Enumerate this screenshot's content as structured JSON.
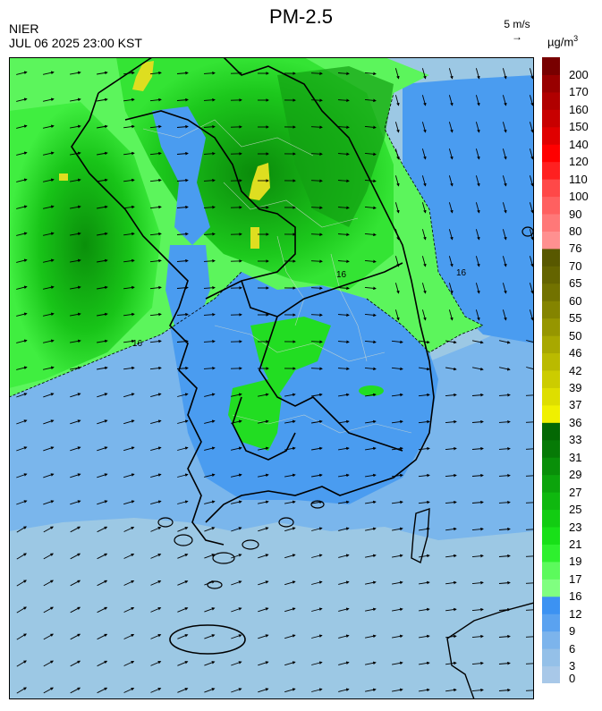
{
  "header": {
    "title": "PM-2.5",
    "agency": "NIER",
    "datetime": "JUL 06 2025 23:00 KST",
    "wind_scale_label": "5 m/s",
    "unit_base": "µg/m",
    "unit_exp": "3"
  },
  "legend": {
    "bands": [
      {
        "label": "0",
        "color": "#a8c8e8"
      },
      {
        "label": "3",
        "color": "#94c0e8"
      },
      {
        "label": "6",
        "color": "#7cb4ec"
      },
      {
        "label": "9",
        "color": "#5aa2f0"
      },
      {
        "label": "12",
        "color": "#3c92f2"
      },
      {
        "label": "16",
        "color": "#80ff80"
      },
      {
        "label": "17",
        "color": "#5cfa5c"
      },
      {
        "label": "19",
        "color": "#2ef02e"
      },
      {
        "label": "21",
        "color": "#18e018"
      },
      {
        "label": "23",
        "color": "#12cc12"
      },
      {
        "label": "25",
        "color": "#0fb80f"
      },
      {
        "label": "27",
        "color": "#0ca40c"
      },
      {
        "label": "29",
        "color": "#098f09"
      },
      {
        "label": "31",
        "color": "#067a06"
      },
      {
        "label": "33",
        "color": "#046804"
      },
      {
        "label": "36",
        "color": "#f0f000"
      },
      {
        "label": "37",
        "color": "#dede00"
      },
      {
        "label": "39",
        "color": "#cccc00"
      },
      {
        "label": "42",
        "color": "#baba00"
      },
      {
        "label": "46",
        "color": "#a8a800"
      },
      {
        "label": "50",
        "color": "#969600"
      },
      {
        "label": "55",
        "color": "#848400"
      },
      {
        "label": "60",
        "color": "#727200"
      },
      {
        "label": "65",
        "color": "#646400"
      },
      {
        "label": "70",
        "color": "#585800"
      },
      {
        "label": "76",
        "color": "#ff9090"
      },
      {
        "label": "80",
        "color": "#ff7878"
      },
      {
        "label": "90",
        "color": "#ff6060"
      },
      {
        "label": "100",
        "color": "#ff4848"
      },
      {
        "label": "110",
        "color": "#ff2020"
      },
      {
        "label": "120",
        "color": "#ff0000"
      },
      {
        "label": "140",
        "color": "#e00000"
      },
      {
        "label": "150",
        "color": "#c80000"
      },
      {
        "label": "160",
        "color": "#b00000"
      },
      {
        "label": "170",
        "color": "#980000"
      },
      {
        "label": "200",
        "color": "#780000"
      }
    ]
  },
  "map": {
    "contour_labels": [
      "16",
      "16",
      "16"
    ],
    "colors": {
      "sea_low": "#9cc8e4",
      "sea_mid": "#7ab6ec",
      "coast_blue": "#4a9cf0",
      "green_light": "#5cf55c",
      "green_mid": "#22dd22",
      "green_dark": "#0a9a0a",
      "hotspot": "#dede20",
      "boundary": "#000000",
      "districts": "#cfd8cf"
    }
  }
}
